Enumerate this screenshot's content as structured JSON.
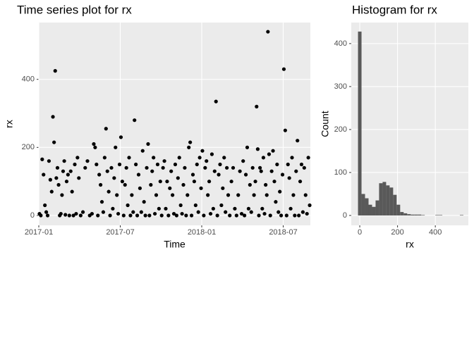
{
  "chart_data": [
    {
      "type": "scatter",
      "title": "Time series plot for rx",
      "x_label": "Time",
      "y_label": "rx",
      "color": "#000000",
      "grid": true,
      "xlim": [
        "2017-01",
        "2018-09"
      ],
      "xticks": [
        "2017-01",
        "2017-07",
        "2018-01",
        "2018-07"
      ],
      "ylim": [
        -29,
        567
      ],
      "yticks": [
        0,
        200,
        400
      ],
      "x": [
        "2017-01",
        "2017-01",
        "2017-01",
        "2017-01",
        "2017-01",
        "2017-01",
        "2017-01",
        "2017-01",
        "2017-01",
        "2017-01",
        "2017-02",
        "2017-02",
        "2017-02",
        "2017-02",
        "2017-02",
        "2017-02",
        "2017-02",
        "2017-02",
        "2017-02",
        "2017-02",
        "2017-02",
        "2017-02",
        "2017-03",
        "2017-03",
        "2017-03",
        "2017-03",
        "2017-03",
        "2017-03",
        "2017-03",
        "2017-03",
        "2017-03",
        "2017-03",
        "2017-04",
        "2017-04",
        "2017-04",
        "2017-04",
        "2017-04",
        "2017-04",
        "2017-05",
        "2017-05",
        "2017-05",
        "2017-05",
        "2017-05",
        "2017-05",
        "2017-05",
        "2017-05",
        "2017-05",
        "2017-05",
        "2017-06",
        "2017-06",
        "2017-06",
        "2017-06",
        "2017-06",
        "2017-06",
        "2017-06",
        "2017-06",
        "2017-06",
        "2017-06",
        "2017-07",
        "2017-07",
        "2017-07",
        "2017-07",
        "2017-07",
        "2017-07",
        "2017-07",
        "2017-07",
        "2017-07",
        "2017-07",
        "2017-08",
        "2017-08",
        "2017-08",
        "2017-08",
        "2017-08",
        "2017-08",
        "2017-08",
        "2017-08",
        "2017-08",
        "2017-08",
        "2017-09",
        "2017-09",
        "2017-09",
        "2017-09",
        "2017-09",
        "2017-09",
        "2017-09",
        "2017-09",
        "2017-09",
        "2017-09",
        "2017-10",
        "2017-10",
        "2017-10",
        "2017-10",
        "2017-10",
        "2017-10",
        "2017-10",
        "2017-10",
        "2017-10",
        "2017-10",
        "2017-11",
        "2017-11",
        "2017-11",
        "2017-11",
        "2017-11",
        "2017-11",
        "2017-11",
        "2017-11",
        "2017-11",
        "2017-11",
        "2017-12",
        "2017-12",
        "2017-12",
        "2017-12",
        "2017-12",
        "2017-12",
        "2017-12",
        "2017-12",
        "2017-12",
        "2017-12",
        "2018-01",
        "2018-01",
        "2018-01",
        "2018-01",
        "2018-01",
        "2018-01",
        "2018-01",
        "2018-01",
        "2018-01",
        "2018-01",
        "2018-02",
        "2018-02",
        "2018-02",
        "2018-02",
        "2018-02",
        "2018-02",
        "2018-02",
        "2018-02",
        "2018-02",
        "2018-02",
        "2018-03",
        "2018-03",
        "2018-03",
        "2018-03",
        "2018-03",
        "2018-03",
        "2018-03",
        "2018-03",
        "2018-04",
        "2018-04",
        "2018-04",
        "2018-04",
        "2018-04",
        "2018-04",
        "2018-04",
        "2018-04",
        "2018-04",
        "2018-04",
        "2018-05",
        "2018-05",
        "2018-05",
        "2018-05",
        "2018-05",
        "2018-05",
        "2018-05",
        "2018-05",
        "2018-05",
        "2018-05",
        "2018-05",
        "2018-05",
        "2018-06",
        "2018-06",
        "2018-06",
        "2018-06",
        "2018-06",
        "2018-06",
        "2018-06",
        "2018-06",
        "2018-06",
        "2018-06",
        "2018-07",
        "2018-07",
        "2018-07",
        "2018-07",
        "2018-07",
        "2018-07",
        "2018-07",
        "2018-07",
        "2018-07",
        "2018-07",
        "2018-08",
        "2018-08",
        "2018-08",
        "2018-08",
        "2018-08",
        "2018-08",
        "2018-08",
        "2018-08",
        "2018-08",
        "2018-08"
      ],
      "values": [
        5,
        0,
        165,
        120,
        30,
        10,
        0,
        160,
        105,
        70,
        290,
        215,
        425,
        110,
        140,
        90,
        0,
        5,
        60,
        130,
        160,
        2,
        100,
        120,
        0,
        130,
        70,
        0,
        150,
        5,
        170,
        110,
        0,
        10,
        140,
        160,
        0,
        5,
        210,
        200,
        150,
        0,
        120,
        90,
        40,
        10,
        170,
        255,
        130,
        70,
        0,
        140,
        20,
        110,
        200,
        60,
        5,
        150,
        230,
        100,
        0,
        90,
        140,
        30,
        170,
        0,
        60,
        10,
        280,
        150,
        0,
        120,
        80,
        10,
        190,
        40,
        0,
        140,
        210,
        0,
        90,
        130,
        170,
        5,
        60,
        150,
        20,
        100,
        0,
        140,
        160,
        20,
        100,
        0,
        80,
        130,
        60,
        5,
        150,
        0,
        110,
        170,
        30,
        5,
        90,
        140,
        0,
        60,
        200,
        215,
        0,
        120,
        100,
        30,
        150,
        10,
        170,
        80,
        190,
        0,
        140,
        160,
        60,
        100,
        5,
        180,
        20,
        130,
        335,
        0,
        120,
        150,
        30,
        80,
        170,
        10,
        140,
        60,
        0,
        100,
        140,
        20,
        0,
        60,
        130,
        5,
        160,
        0,
        120,
        200,
        20,
        90,
        10,
        140,
        60,
        100,
        320,
        195,
        0,
        140,
        130,
        20,
        170,
        5,
        90,
        60,
        540,
        180,
        0,
        130,
        190,
        100,
        40,
        150,
        10,
        70,
        0,
        120,
        430,
        250,
        0,
        150,
        110,
        20,
        170,
        60,
        0,
        130,
        220,
        0,
        100,
        150,
        10,
        140,
        60,
        5,
        170,
        30
      ]
    },
    {
      "type": "histogram",
      "title": "Histogram for rx",
      "x_label": "rx",
      "y_label": "Count",
      "color": "#595959",
      "grid": true,
      "xlim": [
        -45,
        575
      ],
      "xticks": [
        0,
        200,
        400
      ],
      "ylim": [
        -23,
        449
      ],
      "yticks": [
        0,
        100,
        200,
        300,
        400
      ],
      "bins": [
        -9.3,
        9.3,
        27.9,
        46.5,
        65.1,
        83.7,
        102.3,
        120.9,
        139.5,
        158.1,
        176.7,
        195.3,
        213.9,
        232.5,
        251.1,
        269.7,
        288.3,
        306.9,
        325.5,
        344.1,
        362.7,
        381.3,
        399.9,
        418.5,
        437.1,
        455.7,
        474.3,
        492.9,
        511.5,
        530.1,
        548.7
      ],
      "values": [
        428,
        50,
        40,
        25,
        20,
        35,
        75,
        78,
        70,
        65,
        48,
        25,
        8,
        5,
        3,
        2,
        2,
        2,
        1,
        0,
        0,
        0,
        1,
        1,
        0,
        0,
        0,
        0,
        0,
        1
      ]
    }
  ]
}
